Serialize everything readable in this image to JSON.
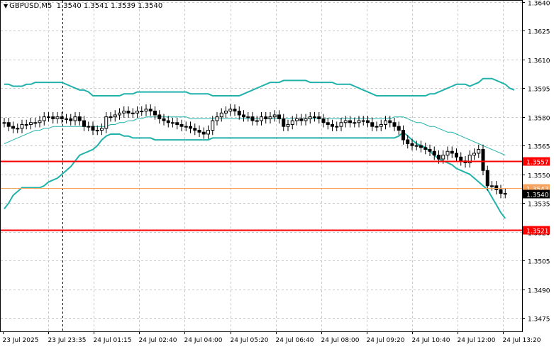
{
  "header": {
    "symbol_timeframe": "GBPUSD,M5",
    "ohlc": "1.3540 1.3541 1.3539 1.3540"
  },
  "colors": {
    "background": "#ffffff",
    "grid": "#c8c8c8",
    "axis": "#000000",
    "candle": "#000000",
    "bollinger": "#20b2aa",
    "level_line": "#ff0000",
    "bid_line": "#f4a460",
    "label_text": "#ffffff"
  },
  "chart_data": {
    "type": "candlestick",
    "symbol": "GBPUSD",
    "timeframe": "M5",
    "price_axis_ticks": [
      "1.3640",
      "1.3625",
      "1.3610",
      "1.3595",
      "1.3580",
      "1.3565",
      "1.3550",
      "1.3535",
      "1.3520",
      "1.3505",
      "1.3490",
      "1.3475"
    ],
    "price_range": [
      1.3468,
      1.3641
    ],
    "time_axis_labels": [
      "23 Jul 2025",
      "23 Jul 23:35",
      "24 Jul 01:15",
      "24 Jul 02:40",
      "24 Jul 04:00",
      "24 Jul 05:20",
      "24 Jul 06:40",
      "24 Jul 08:00",
      "24 Jul 09:20",
      "24 Jul 10:40",
      "24 Jul 12:00",
      "24 Jul 13:20"
    ],
    "grid": true,
    "horizontal_levels": [
      {
        "price": 1.3557,
        "label": "1.3557",
        "kind": "level"
      },
      {
        "price": 1.3521,
        "label": "1.3521",
        "kind": "level"
      },
      {
        "price": 1.3543,
        "label": "1.3543",
        "kind": "bid"
      }
    ],
    "current_price": {
      "price": 1.354,
      "label": "1.3540"
    },
    "candle_count": 114,
    "close": [
      1.3577,
      1.3575,
      1.3574,
      1.3574,
      1.3576,
      1.3576,
      1.3577,
      1.3577,
      1.3578,
      1.358,
      1.358,
      1.3579,
      1.358,
      1.3579,
      1.3579,
      1.3578,
      1.358,
      1.3578,
      1.3575,
      1.3575,
      1.3573,
      1.3573,
      1.3574,
      1.358,
      1.358,
      1.3581,
      1.3582,
      1.3583,
      1.3582,
      1.3582,
      1.3583,
      1.3583,
      1.3584,
      1.3583,
      1.3581,
      1.3579,
      1.3578,
      1.3577,
      1.3577,
      1.3576,
      1.3575,
      1.3575,
      1.3574,
      1.3573,
      1.3572,
      1.3571,
      1.3573,
      1.3578,
      1.358,
      1.3582,
      1.3583,
      1.3584,
      1.3583,
      1.3581,
      1.358,
      1.358,
      1.3578,
      1.3578,
      1.358,
      1.3579,
      1.358,
      1.3581,
      1.3579,
      1.3575,
      1.3576,
      1.3578,
      1.3579,
      1.3578,
      1.3579,
      1.358,
      1.358,
      1.3579,
      1.3577,
      1.3576,
      1.3575,
      1.3575,
      1.3577,
      1.3578,
      1.3577,
      1.3577,
      1.3578,
      1.3578,
      1.3577,
      1.3575,
      1.3575,
      1.3576,
      1.3578,
      1.3577,
      1.3575,
      1.3573,
      1.3568,
      1.3566,
      1.3565,
      1.3565,
      1.3564,
      1.3563,
      1.3562,
      1.356,
      1.3558,
      1.356,
      1.3562,
      1.3561,
      1.3559,
      1.3557,
      1.3556,
      1.356,
      1.3561,
      1.3563,
      1.3552,
      1.3544,
      1.3544,
      1.3542,
      1.354,
      1.354
    ],
    "bollinger_upper": [
      1.3597,
      1.3597,
      1.3596,
      1.3596,
      1.3596,
      1.3597,
      1.3597,
      1.3598,
      1.3598,
      1.3598,
      1.3598,
      1.3598,
      1.3598,
      1.3598,
      1.3597,
      1.3596,
      1.3595,
      1.3594,
      1.3594,
      1.3593,
      1.3591,
      1.3591,
      1.3591,
      1.3591,
      1.3591,
      1.3591,
      1.3591,
      1.3592,
      1.3592,
      1.3592,
      1.3593,
      1.3593,
      1.3593,
      1.3593,
      1.3593,
      1.3593,
      1.3593,
      1.3593,
      1.3593,
      1.3593,
      1.3593,
      1.3593,
      1.3592,
      1.3592,
      1.3592,
      1.3592,
      1.3592,
      1.3591,
      1.3591,
      1.3591,
      1.3591,
      1.3591,
      1.3591,
      1.3591,
      1.3592,
      1.3593,
      1.3594,
      1.3595,
      1.3596,
      1.3597,
      1.3598,
      1.3598,
      1.3598,
      1.3599,
      1.3599,
      1.3599,
      1.3599,
      1.3599,
      1.3599,
      1.3598,
      1.3598,
      1.3598,
      1.3598,
      1.3598,
      1.3598,
      1.3597,
      1.3597,
      1.3597,
      1.3597,
      1.3596,
      1.3595,
      1.3594,
      1.3593,
      1.3592,
      1.3591,
      1.3591,
      1.3591,
      1.3591,
      1.3591,
      1.3591,
      1.3591,
      1.3591,
      1.3591,
      1.3591,
      1.3591,
      1.3591,
      1.3592,
      1.3592,
      1.3593,
      1.3594,
      1.3595,
      1.3596,
      1.3597,
      1.3597,
      1.3597,
      1.3596,
      1.3597,
      1.3598,
      1.36,
      1.36,
      1.36,
      1.3599,
      1.3598,
      1.3597,
      1.3595,
      1.3594
    ],
    "bollinger_middle": [
      1.3566,
      1.3567,
      1.3568,
      1.3569,
      1.357,
      1.3571,
      1.3572,
      1.3573,
      1.3573,
      1.3574,
      1.3574,
      1.3575,
      1.3575,
      1.3575,
      1.3575,
      1.3575,
      1.3575,
      1.3575,
      1.3575,
      1.3575,
      1.3575,
      1.3575,
      1.3575,
      1.3575,
      1.3576,
      1.3576,
      1.3577,
      1.3577,
      1.3578,
      1.3578,
      1.3579,
      1.3579,
      1.358,
      1.358,
      1.358,
      1.358,
      1.358,
      1.358,
      1.358,
      1.358,
      1.358,
      1.358,
      1.3579,
      1.3579,
      1.3579,
      1.3579,
      1.3579,
      1.3579,
      1.3579,
      1.3579,
      1.3579,
      1.3579,
      1.3579,
      1.3579,
      1.3579,
      1.3579,
      1.3579,
      1.3579,
      1.3579,
      1.3579,
      1.3579,
      1.3579,
      1.3579,
      1.3579,
      1.3579,
      1.3579,
      1.3579,
      1.3579,
      1.3579,
      1.3579,
      1.3579,
      1.3579,
      1.3579,
      1.3579,
      1.3579,
      1.3579,
      1.3579,
      1.3579,
      1.3579,
      1.3579,
      1.3579,
      1.3579,
      1.3579,
      1.3579,
      1.3579,
      1.3579,
      1.3579,
      1.3579,
      1.358,
      1.358,
      1.358,
      1.3579,
      1.3578,
      1.3577,
      1.3577,
      1.3576,
      1.3575,
      1.3575,
      1.3574,
      1.3573,
      1.3572,
      1.3572,
      1.3571,
      1.357,
      1.3569,
      1.3568,
      1.3567,
      1.3566,
      1.3565,
      1.3564,
      1.3563,
      1.3562,
      1.3561,
      1.356
    ],
    "bollinger_lower": [
      1.3532,
      1.3535,
      1.3539,
      1.3541,
      1.3543,
      1.3543,
      1.3543,
      1.3543,
      1.3543,
      1.3544,
      1.3546,
      1.3547,
      1.3548,
      1.355,
      1.3552,
      1.3554,
      1.3557,
      1.356,
      1.3561,
      1.3562,
      1.3563,
      1.3565,
      1.3568,
      1.357,
      1.3571,
      1.3571,
      1.3571,
      1.357,
      1.357,
      1.3569,
      1.3569,
      1.3569,
      1.3569,
      1.3569,
      1.3568,
      1.3568,
      1.3568,
      1.3568,
      1.3568,
      1.3568,
      1.3568,
      1.3568,
      1.3568,
      1.3568,
      1.3568,
      1.3568,
      1.3568,
      1.3569,
      1.3569,
      1.3569,
      1.3569,
      1.3569,
      1.3569,
      1.3569,
      1.3569,
      1.3569,
      1.3569,
      1.3569,
      1.3569,
      1.3569,
      1.3569,
      1.3569,
      1.3569,
      1.3569,
      1.3569,
      1.3569,
      1.3569,
      1.3569,
      1.3569,
      1.3569,
      1.3569,
      1.3569,
      1.3569,
      1.3569,
      1.3569,
      1.3569,
      1.3569,
      1.3569,
      1.3569,
      1.3569,
      1.3569,
      1.3569,
      1.3569,
      1.3569,
      1.3569,
      1.3569,
      1.3569,
      1.3569,
      1.3569,
      1.357,
      1.3572,
      1.357,
      1.3568,
      1.3566,
      1.3565,
      1.3564,
      1.3562,
      1.356,
      1.3558,
      1.3557,
      1.3556,
      1.3555,
      1.3553,
      1.3552,
      1.3551,
      1.355,
      1.3548,
      1.3546,
      1.3544,
      1.3542,
      1.3538,
      1.3534,
      1.353,
      1.3527
    ]
  }
}
